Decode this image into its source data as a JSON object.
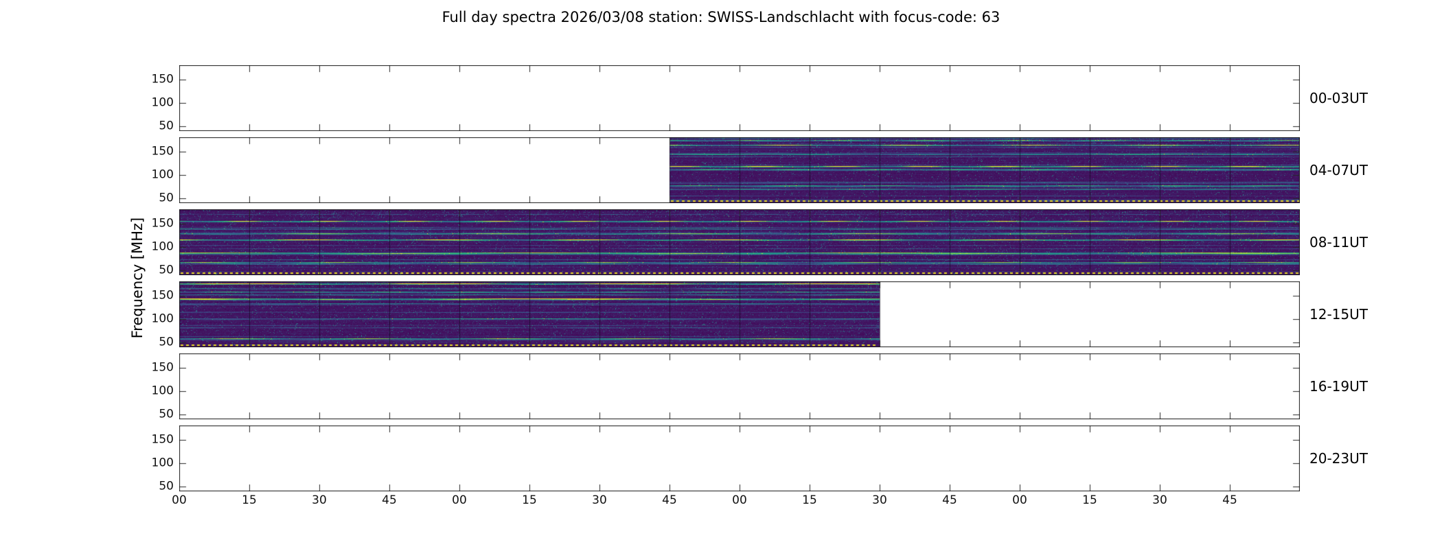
{
  "title": "Full day spectra 2026/03/08 station: SWISS-Landschlacht with focus-code: 63",
  "ylabel": "Frequency [MHz]",
  "chart_data": {
    "type": "heatmap",
    "title": "Full day spectra 2026/03/08 station: SWISS-Landschlacht with focus-code: 63",
    "xlabel": "",
    "ylabel": "Frequency [MHz]",
    "ylim": [
      40,
      180
    ],
    "yticks": [
      50,
      100,
      150
    ],
    "xticks": [
      "00",
      "15",
      "30",
      "45",
      "00",
      "15",
      "30",
      "45",
      "00",
      "15",
      "30",
      "45",
      "00",
      "15",
      "30",
      "45"
    ],
    "hours_per_row": 4,
    "segments_per_row": 16,
    "colormap": "viridis",
    "colors": {
      "background": "#440154",
      "teal": "#21918c",
      "green": "#35b779",
      "bright": "#fde725",
      "dotted_line": "#e8dc22",
      "frame": "#1a1a1a"
    },
    "rows": [
      {
        "label": "00-03UT",
        "data_coverage": []
      },
      {
        "label": "04-07UT",
        "data_coverage": [
          [
            0.4375,
            1.0
          ]
        ]
      },
      {
        "label": "08-11UT",
        "data_coverage": [
          [
            0.0,
            1.0
          ]
        ]
      },
      {
        "label": "12-15UT",
        "data_coverage": [
          [
            0.0,
            0.625
          ]
        ]
      },
      {
        "label": "16-19UT",
        "data_coverage": []
      },
      {
        "label": "20-23UT",
        "data_coverage": []
      }
    ]
  }
}
